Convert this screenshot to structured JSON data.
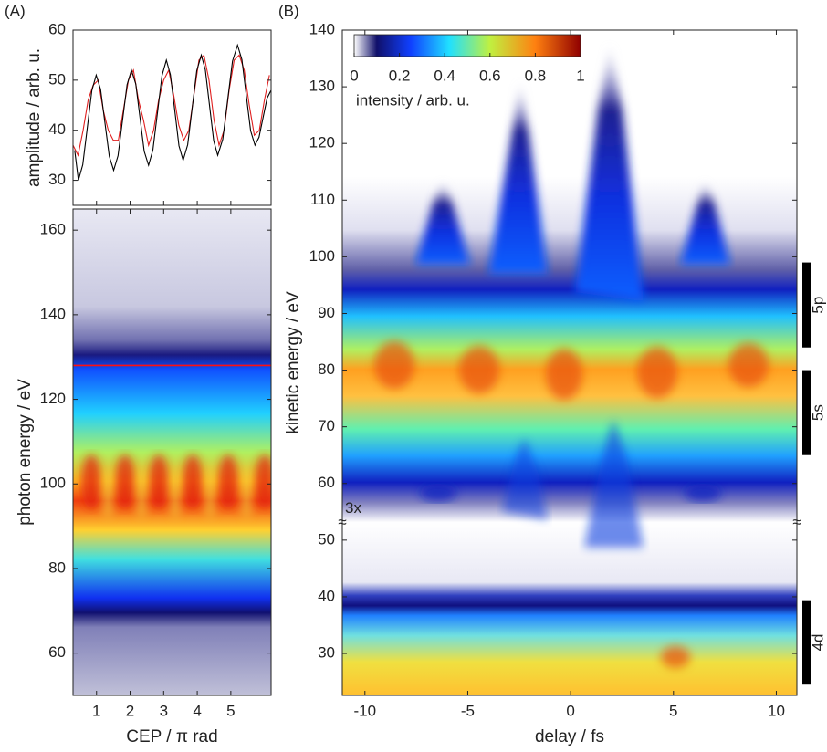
{
  "chart_data": [
    {
      "type": "line",
      "panel_label": "(A)",
      "ylabel": "amplitude / arb. u.",
      "xlim": [
        0.3,
        6.2
      ],
      "ylim": [
        25,
        60
      ],
      "yticks": [
        30,
        40,
        50,
        60
      ],
      "series": [
        {
          "color": "#e02020",
          "x": [
            0.3,
            0.45,
            0.6,
            0.75,
            0.9,
            1.05,
            1.2,
            1.35,
            1.5,
            1.65,
            1.8,
            1.95,
            2.1,
            2.25,
            2.4,
            2.55,
            2.7,
            2.85,
            3.0,
            3.15,
            3.3,
            3.45,
            3.6,
            3.75,
            3.9,
            4.05,
            4.2,
            4.35,
            4.5,
            4.65,
            4.8,
            4.95,
            5.1,
            5.25,
            5.4,
            5.55,
            5.7,
            5.85,
            6.0,
            6.15
          ],
          "values": [
            37,
            35,
            40,
            46,
            49,
            50,
            44,
            40,
            38,
            38,
            44,
            50,
            52,
            46,
            42,
            37,
            40,
            46,
            50,
            52,
            47,
            41,
            38,
            40,
            47,
            54,
            55,
            50,
            42,
            37,
            40,
            48,
            54,
            55,
            52,
            45,
            39,
            40,
            46,
            51
          ]
        },
        {
          "color": "#000000",
          "x": [
            0.35,
            0.46,
            0.59,
            0.725,
            0.86,
            0.99,
            1.12,
            1.25,
            1.38,
            1.51,
            1.64,
            1.775,
            1.91,
            2.04,
            2.17,
            2.295,
            2.42,
            2.55,
            2.68,
            2.815,
            2.95,
            3.08,
            3.2,
            3.33,
            3.455,
            3.58,
            3.715,
            3.85,
            3.985,
            4.12,
            4.24,
            4.365,
            4.49,
            4.61,
            4.76,
            4.905,
            5.05,
            5.2,
            5.33,
            5.46,
            5.59,
            5.72,
            5.84,
            5.96,
            6.08,
            6.2
          ],
          "values": [
            36,
            30,
            33.1,
            40.5,
            47.9,
            51,
            48.2,
            41.5,
            34.8,
            32,
            34.9,
            42,
            49.1,
            52,
            49.2,
            42.5,
            35.8,
            33,
            36.1,
            43.5,
            50.9,
            54,
            51.1,
            44,
            36.9,
            34,
            37.1,
            44.5,
            51.9,
            55,
            52.1,
            45,
            37.9,
            35,
            38.2,
            46,
            53.8,
            57,
            54.1,
            47,
            39.9,
            37,
            38.6,
            42.5,
            46.4,
            48
          ]
        }
      ]
    },
    {
      "type": "heatmap",
      "xlabel": "CEP / π rad",
      "ylabel": "photon energy / eV",
      "xlim": [
        0.3,
        6.2
      ],
      "xticks": [
        1,
        2,
        3,
        4,
        5
      ],
      "ylim": [
        50,
        165
      ],
      "yticks": [
        60,
        80,
        100,
        120,
        140,
        160
      ],
      "reference_line": {
        "value": 128,
        "color": "#ff1010"
      }
    },
    {
      "type": "heatmap",
      "panel_label": "(B)",
      "xlabel": "delay / fs",
      "ylabel": "kinetic energy / eV",
      "xlim": [
        -11.1,
        11
      ],
      "xticks": [
        -10,
        -5,
        0,
        5,
        10
      ],
      "ylim": [
        22.6,
        140
      ],
      "yticks": [
        30,
        40,
        50,
        60,
        70,
        80,
        90,
        100,
        110,
        120,
        130,
        140
      ],
      "break_mark": "≈",
      "annotation": "3x",
      "bands": [
        {
          "label": "5p",
          "range": [
            84,
            99
          ]
        },
        {
          "label": "5s",
          "range": [
            65,
            80
          ]
        },
        {
          "label": "4d",
          "range": [
            24.5,
            39.4
          ]
        }
      ],
      "colorbar": {
        "lim": [
          0,
          1
        ],
        "ticks": [
          0,
          0.2,
          0.4,
          0.6,
          0.8,
          1
        ],
        "label": "intensity / arb. u."
      }
    }
  ]
}
